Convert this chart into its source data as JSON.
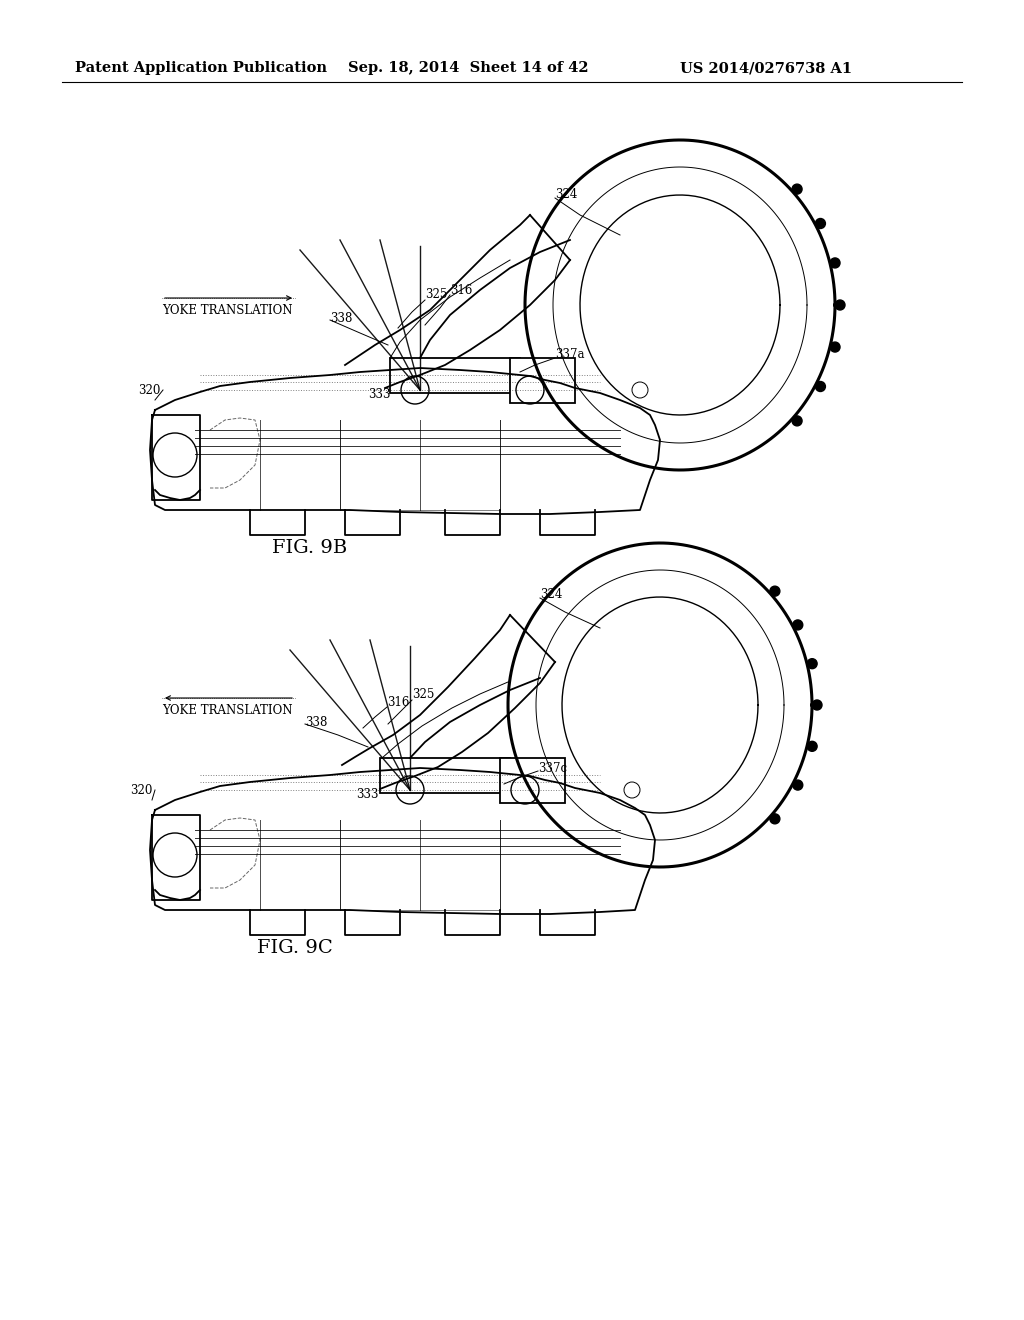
{
  "background_color": "#ffffff",
  "header_left": "Patent Application Publication",
  "header_center": "Sep. 18, 2014  Sheet 14 of 42",
  "header_right": "US 2014/0276738 A1",
  "header_fontsize": 10.5,
  "fig9b_label": "FIG. 9B",
  "fig9c_label": "FIG. 9C",
  "annotation_fontsize": 8.5,
  "fig_label_fontsize": 14,
  "line_color": "#000000",
  "lw_main": 1.3,
  "lw_thick": 2.2,
  "lw_thin": 0.7,
  "lw_med": 1.0
}
